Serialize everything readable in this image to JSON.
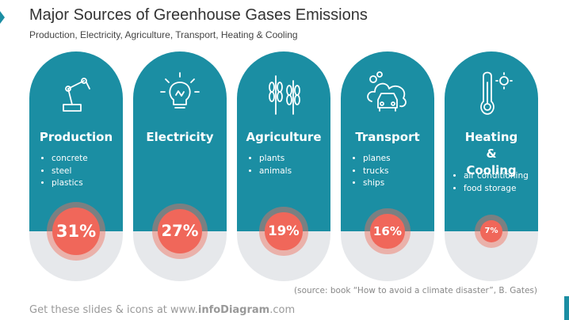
{
  "header": {
    "title": "Major Sources of Greenhouse Gases Emissions",
    "subtitle": "Production, Electricity, Agriculture, Transport, Heating & Cooling"
  },
  "cards": [
    {
      "name": "Production",
      "items": [
        "concrete",
        "steel",
        "plastics"
      ],
      "share": {
        "value": 31,
        "label": "31%"
      }
    },
    {
      "name": "Electricity",
      "items": [],
      "share": {
        "value": 27,
        "label": "27%"
      }
    },
    {
      "name": "Agriculture",
      "items": [
        "plants",
        "animals"
      ],
      "share": {
        "value": 19,
        "label": "19%"
      }
    },
    {
      "name": "Transport",
      "items": [
        "planes",
        "trucks",
        "ships"
      ],
      "share": {
        "value": 16,
        "label": "16%"
      }
    },
    {
      "name": "Heating & Cooling",
      "items": [
        "air conditioning",
        "food storage"
      ],
      "share": {
        "value": 7,
        "label": "7%"
      }
    }
  ],
  "source": "(source: book “How to avoid a climate disaster”, B. Gates)",
  "footer": {
    "prefix": "Get these slides & icons at www.",
    "brand": "infoDiagram",
    "suffix": ".com"
  }
}
